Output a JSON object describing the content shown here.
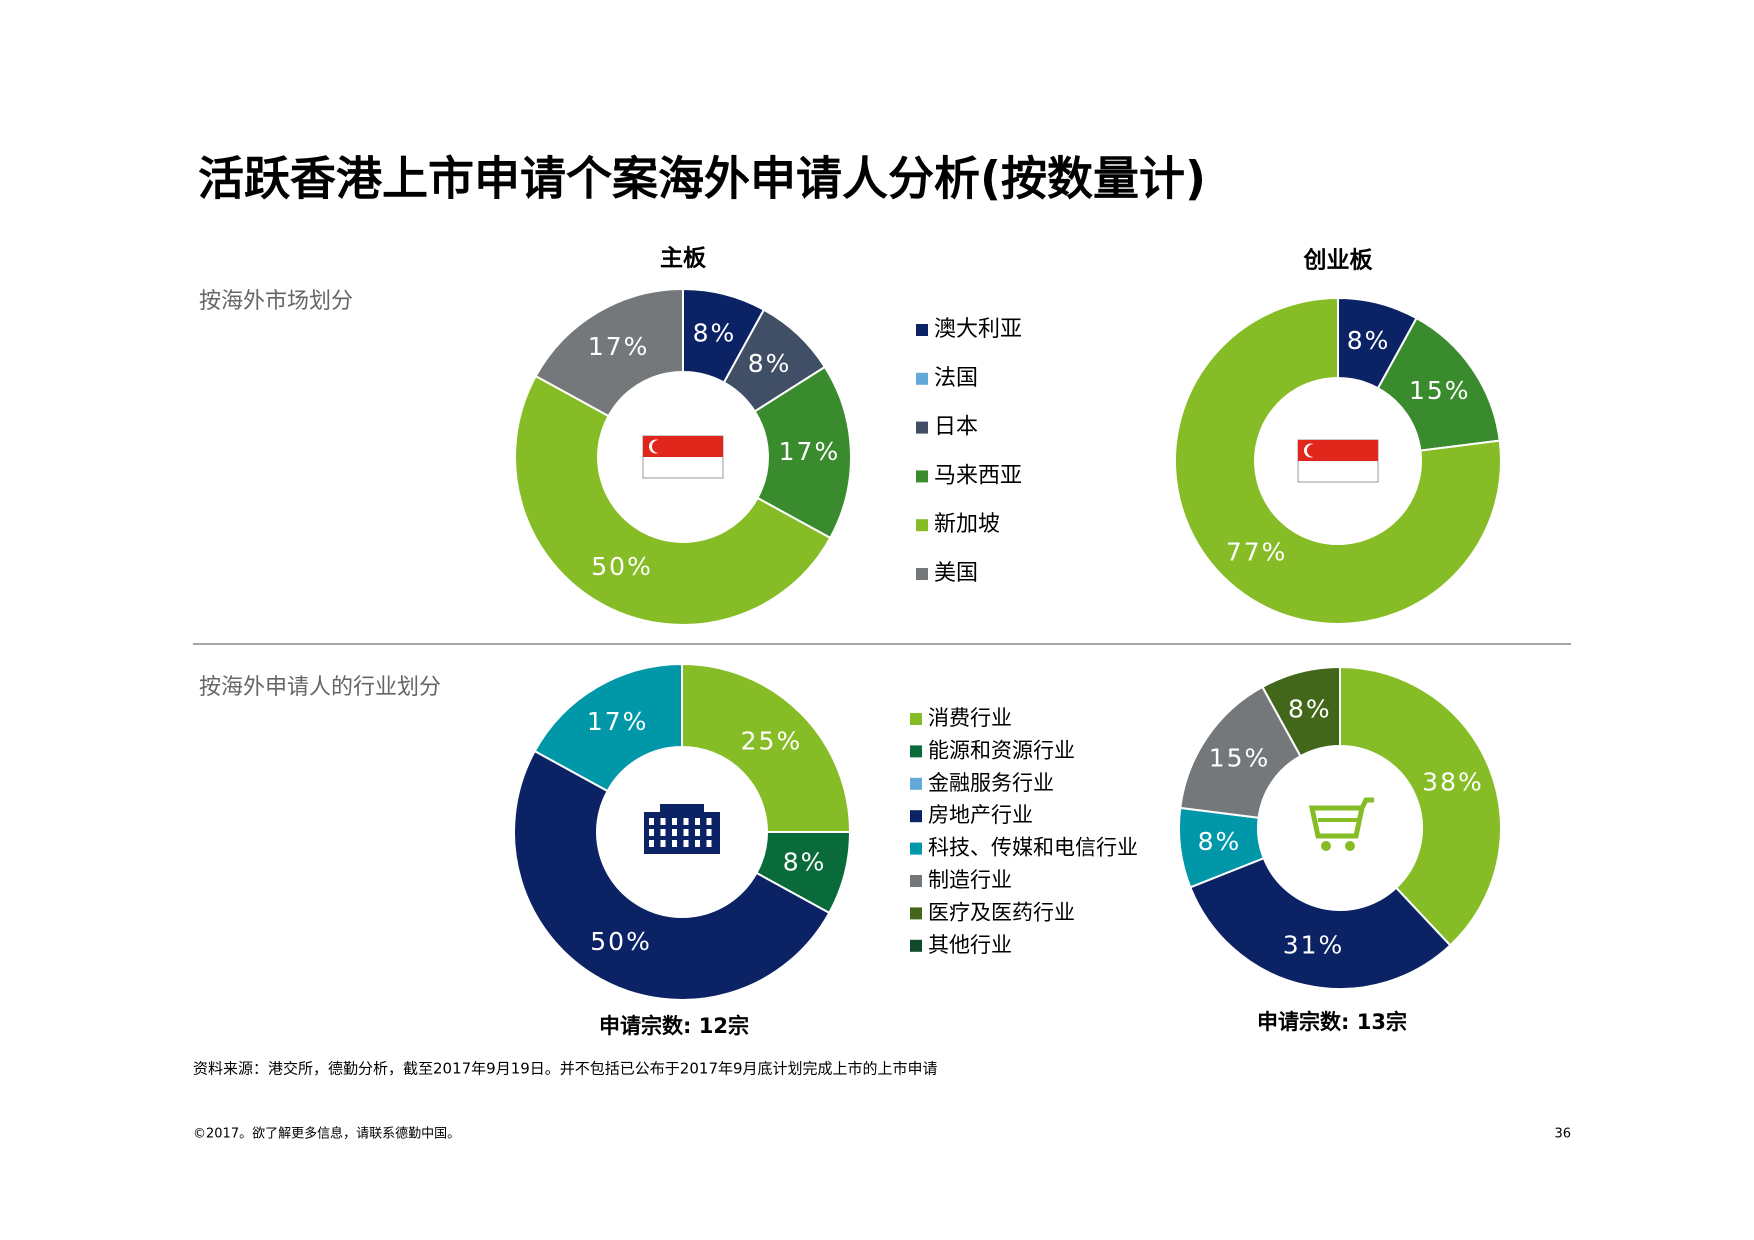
{
  "header": {
    "title": "活跃香港上市申请个案海外申请人分析(按数量计)"
  },
  "sections": [
    "按海外市场划分",
    "按海外申请人的行业划分"
  ],
  "legends": [
    {
      "items": [
        {
          "name": "澳大利亚",
          "color": "#0b2265"
        },
        {
          "name": "法国",
          "color": "#62a8d8"
        },
        {
          "name": "日本",
          "color": "#404e66"
        },
        {
          "name": "马来西亚",
          "color": "#3a8a2e"
        },
        {
          "name": "新加坡",
          "color": "#86bc25"
        },
        {
          "name": "美国",
          "color": "#75787b"
        }
      ]
    },
    {
      "items": [
        {
          "name": "消费行业",
          "color": "#86bc25"
        },
        {
          "name": "能源和资源行业",
          "color": "#0a6b3a"
        },
        {
          "name": "金融服务行业",
          "color": "#62a8d8"
        },
        {
          "name": "房地产行业",
          "color": "#0b2265"
        },
        {
          "name": "科技、传媒和电信行业",
          "color": "#0097a9"
        },
        {
          "name": "制造行业",
          "color": "#75787b"
        },
        {
          "name": "医疗及医药行业",
          "color": "#43671a"
        },
        {
          "name": "其他行业",
          "color": "#0f4a2a"
        }
      ]
    }
  ],
  "chart_data": [
    {
      "type": "donut",
      "title": "主板",
      "categories": [
        "澳大利亚",
        "日本",
        "马来西亚",
        "新加坡",
        "美国"
      ],
      "values": [
        8,
        8,
        17,
        50,
        17
      ],
      "value_labels": [
        "8%",
        "8%",
        "17%",
        "50%",
        "17%"
      ],
      "colors": [
        "#0b2265",
        "#404e66",
        "#3a8a2e",
        "#86bc25",
        "#75787b"
      ]
    },
    {
      "type": "donut",
      "title": "创业板",
      "categories": [
        "澳大利亚",
        "马来西亚",
        "新加坡"
      ],
      "values": [
        8,
        15,
        77
      ],
      "value_labels": [
        "8%",
        "15%",
        "77%"
      ],
      "colors": [
        "#0b2265",
        "#3a8a2e",
        "#86bc25"
      ]
    },
    {
      "type": "donut",
      "subtitle": "申请宗数: 12宗",
      "categories": [
        "消费行业",
        "能源和资源行业",
        "房地产行业",
        "科技、传媒和电信行业"
      ],
      "values": [
        25,
        8,
        50,
        17
      ],
      "value_labels": [
        "25%",
        "8%",
        "50%",
        "17%"
      ],
      "colors": [
        "#86bc25",
        "#0a6b3a",
        "#0b2265",
        "#0097a9"
      ]
    },
    {
      "type": "donut",
      "subtitle": "申请宗数: 13宗",
      "categories": [
        "消费行业",
        "房地产行业",
        "科技、传媒和电信行业",
        "制造行业",
        "医疗及医药行业"
      ],
      "values": [
        38,
        31,
        8,
        15,
        8
      ],
      "value_labels": [
        "38%",
        "31%",
        "8%",
        "15%",
        "8%"
      ],
      "colors": [
        "#86bc25",
        "#0b2265",
        "#0097a9",
        "#75787b",
        "#43671a"
      ]
    }
  ],
  "footnote": "资料来源：港交所，德勤分析，截至2017年9月19日。并不包括已公布于2017年9月底计划完成上市的上市申请",
  "footer": {
    "copyright": "©2017。欲了解更多信息，请联系德勤中国。",
    "page": "36"
  }
}
